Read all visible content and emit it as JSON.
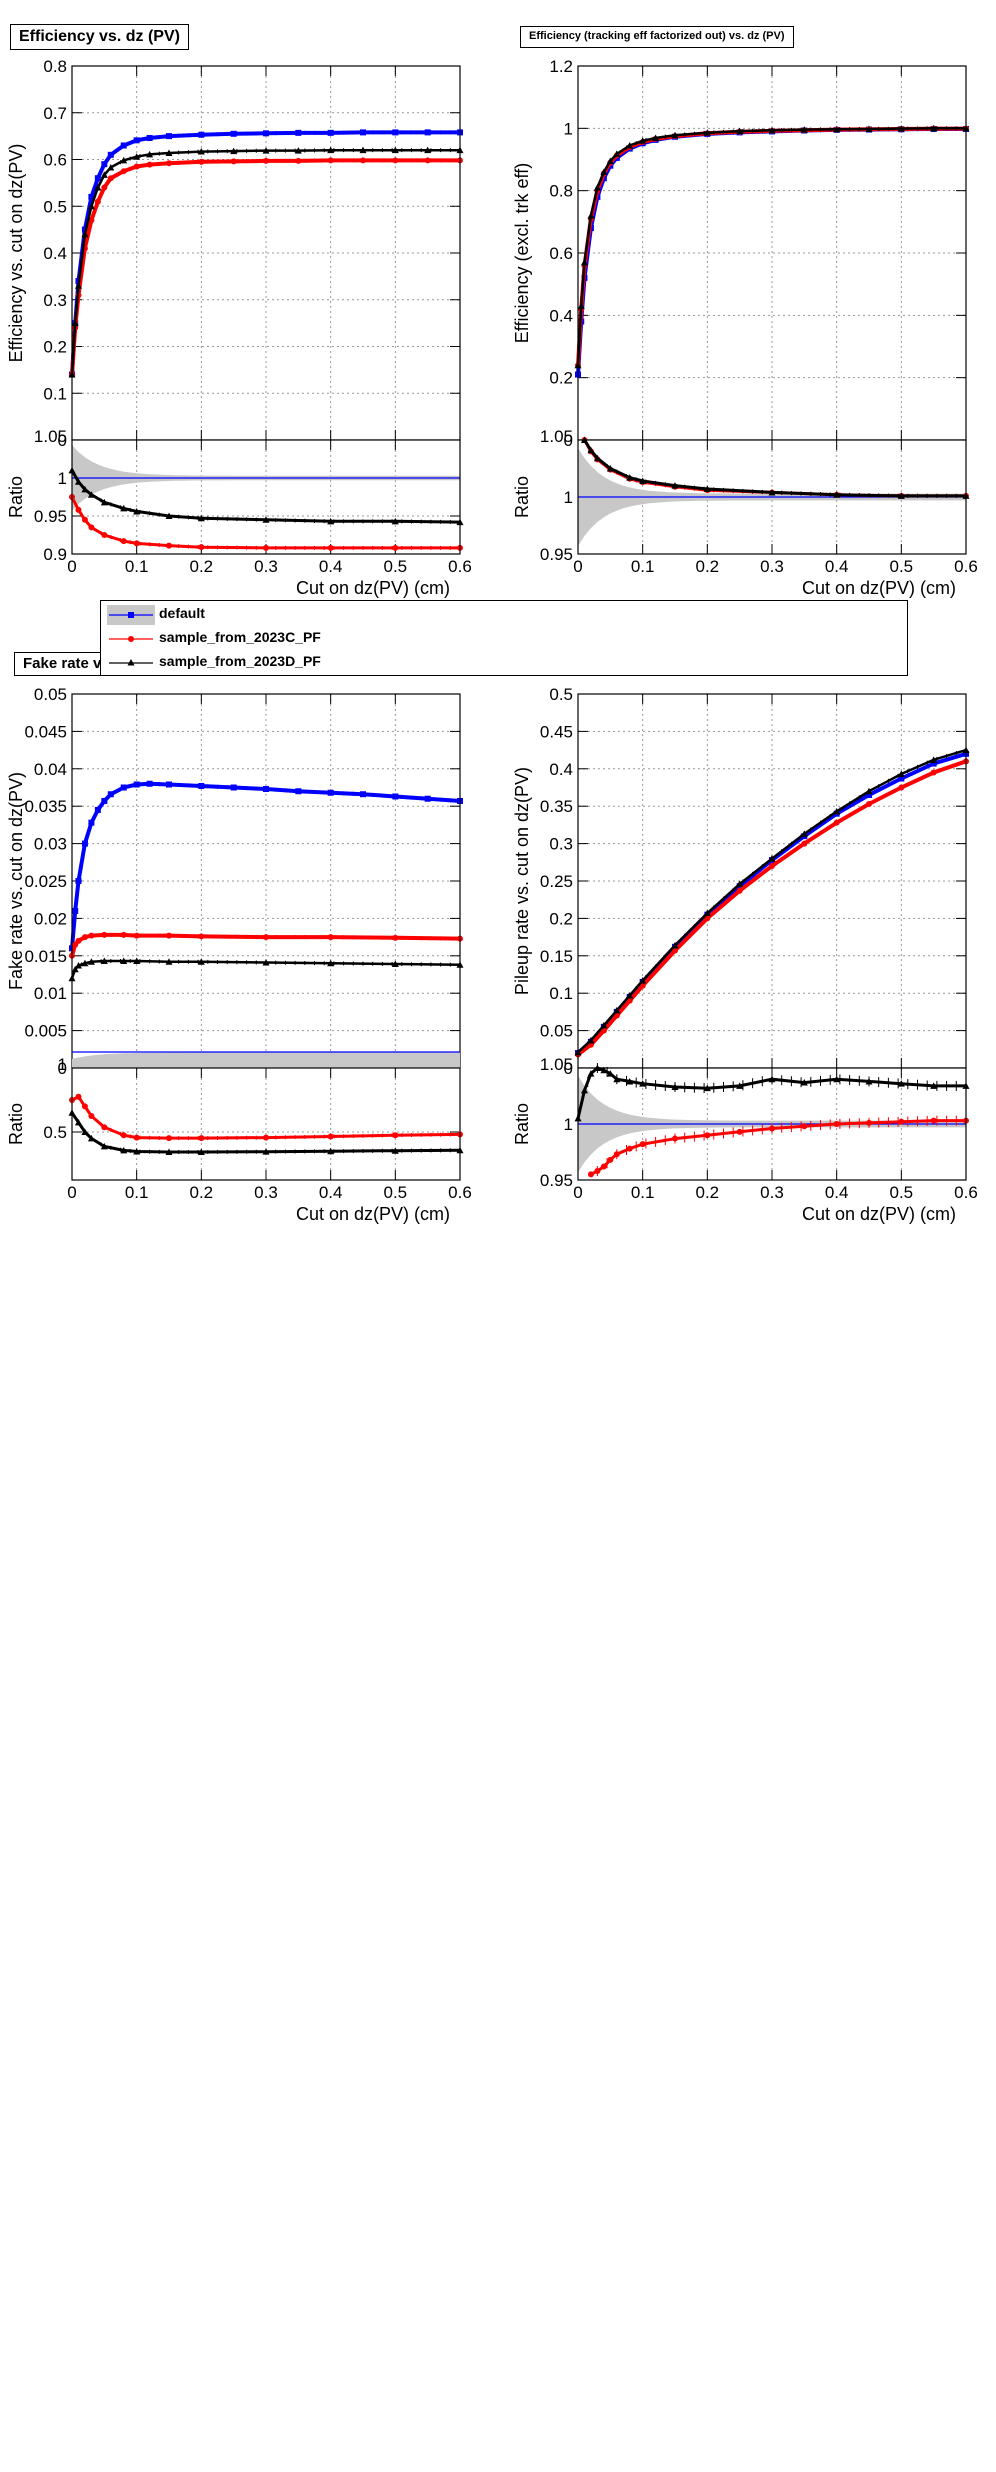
{
  "titles": {
    "eff": "Efficiency vs. dz (PV)",
    "effx": "Efficiency (tracking eff factorized out) vs. dz (PV)",
    "fake": "Fake rate vs. dz (PV)"
  },
  "legend": {
    "entries": [
      {
        "label": "default",
        "color": "#0000ff",
        "marker": "square"
      },
      {
        "label": "sample_from_2023C_PF",
        "color": "#ff0000",
        "marker": "circle"
      },
      {
        "label": "sample_from_2023D_PF",
        "color": "#000000",
        "marker": "triangle"
      }
    ]
  },
  "colors": {
    "default": "#0000ff",
    "2023C": "#ff0000",
    "2023D": "#000000",
    "band": "#c8c8c8",
    "grid": "#999999"
  },
  "chart_data": [
    {
      "id": "eff",
      "type": "scatter",
      "title": "Efficiency vs. dz (PV)",
      "xlabel": "Cut on dz(PV) (cm)",
      "ylabel": "Efficiency vs. cut on dz(PV)",
      "xlim": [
        0,
        0.6
      ],
      "ylim": [
        0,
        0.8
      ],
      "xticks": [
        "0",
        "0.1",
        "0.2",
        "0.3",
        "0.4",
        "0.5",
        "0.6"
      ],
      "yticks": [
        "0",
        "0.1",
        "0.2",
        "0.3",
        "0.4",
        "0.5",
        "0.6",
        "0.7",
        "0.8"
      ],
      "grid": true,
      "series": [
        {
          "name": "default",
          "x": [
            0.0,
            0.005,
            0.01,
            0.02,
            0.03,
            0.04,
            0.05,
            0.06,
            0.08,
            0.1,
            0.12,
            0.15,
            0.2,
            0.25,
            0.3,
            0.35,
            0.4,
            0.45,
            0.5,
            0.55,
            0.6
          ],
          "y": [
            0.14,
            0.25,
            0.34,
            0.45,
            0.52,
            0.56,
            0.59,
            0.61,
            0.63,
            0.641,
            0.646,
            0.65,
            0.653,
            0.655,
            0.656,
            0.657,
            0.657,
            0.658,
            0.658,
            0.658,
            0.658
          ]
        },
        {
          "name": "sample_from_2023C_PF",
          "x": [
            0.0,
            0.005,
            0.01,
            0.02,
            0.03,
            0.04,
            0.05,
            0.06,
            0.08,
            0.1,
            0.12,
            0.15,
            0.2,
            0.25,
            0.3,
            0.35,
            0.4,
            0.45,
            0.5,
            0.55,
            0.6
          ],
          "y": [
            0.14,
            0.24,
            0.31,
            0.41,
            0.47,
            0.51,
            0.54,
            0.56,
            0.575,
            0.585,
            0.589,
            0.592,
            0.595,
            0.596,
            0.597,
            0.597,
            0.598,
            0.598,
            0.598,
            0.598,
            0.598
          ]
        },
        {
          "name": "sample_from_2023D_PF",
          "x": [
            0.0,
            0.005,
            0.01,
            0.02,
            0.03,
            0.04,
            0.05,
            0.06,
            0.08,
            0.1,
            0.12,
            0.15,
            0.2,
            0.25,
            0.3,
            0.35,
            0.4,
            0.45,
            0.5,
            0.55,
            0.6
          ],
          "y": [
            0.14,
            0.25,
            0.33,
            0.44,
            0.5,
            0.54,
            0.567,
            0.583,
            0.598,
            0.606,
            0.611,
            0.614,
            0.617,
            0.618,
            0.619,
            0.619,
            0.62,
            0.62,
            0.62,
            0.62,
            0.62
          ]
        }
      ],
      "ratio": {
        "ylabel": "Ratio",
        "ylim": [
          0.9,
          1.05
        ],
        "yticks": [
          "0.9",
          "0.95",
          "1"
        ],
        "top_tick": "1.05",
        "series": [
          {
            "name": "sample_from_2023C_PF",
            "x": [
              0.0,
              0.01,
              0.02,
              0.03,
              0.05,
              0.08,
              0.1,
              0.15,
              0.2,
              0.3,
              0.4,
              0.5,
              0.6
            ],
            "y": [
              0.975,
              0.958,
              0.945,
              0.935,
              0.925,
              0.917,
              0.914,
              0.911,
              0.909,
              0.908,
              0.908,
              0.908,
              0.908
            ]
          },
          {
            "name": "sample_from_2023D_PF",
            "x": [
              0.0,
              0.01,
              0.02,
              0.03,
              0.05,
              0.08,
              0.1,
              0.15,
              0.2,
              0.3,
              0.4,
              0.5,
              0.6
            ],
            "y": [
              1.01,
              0.995,
              0.985,
              0.978,
              0.968,
              0.96,
              0.956,
              0.95,
              0.947,
              0.945,
              0.943,
              0.943,
              0.942
            ]
          }
        ]
      }
    },
    {
      "id": "effx",
      "type": "scatter",
      "title": "Efficiency (tracking eff factorized out) vs. dz (PV)",
      "xlabel": "Cut on dz(PV) (cm)",
      "ylabel": "Efficiency (excl. trk eff)",
      "xlim": [
        0,
        0.6
      ],
      "ylim": [
        0,
        1.2
      ],
      "xticks": [
        "0",
        "0.1",
        "0.2",
        "0.3",
        "0.4",
        "0.5",
        "0.6"
      ],
      "yticks": [
        "0",
        "0.2",
        "0.4",
        "0.6",
        "0.8",
        "1",
        "1.2"
      ],
      "grid": true,
      "series": [
        {
          "name": "default",
          "x": [
            0.0,
            0.005,
            0.01,
            0.02,
            0.03,
            0.04,
            0.05,
            0.06,
            0.08,
            0.1,
            0.12,
            0.15,
            0.2,
            0.25,
            0.3,
            0.35,
            0.4,
            0.45,
            0.5,
            0.55,
            0.6
          ],
          "y": [
            0.21,
            0.38,
            0.52,
            0.68,
            0.78,
            0.84,
            0.88,
            0.905,
            0.935,
            0.952,
            0.963,
            0.973,
            0.982,
            0.987,
            0.99,
            0.993,
            0.995,
            0.996,
            0.997,
            0.998,
            0.998
          ]
        },
        {
          "name": "sample_from_2023C_PF",
          "x": [
            0.0,
            0.005,
            0.01,
            0.02,
            0.03,
            0.04,
            0.05,
            0.06,
            0.08,
            0.1,
            0.12,
            0.15,
            0.2,
            0.25,
            0.3,
            0.35,
            0.4,
            0.45,
            0.5,
            0.55,
            0.6
          ],
          "y": [
            0.24,
            0.42,
            0.56,
            0.71,
            0.8,
            0.855,
            0.89,
            0.913,
            0.94,
            0.956,
            0.966,
            0.975,
            0.984,
            0.989,
            0.992,
            0.994,
            0.996,
            0.997,
            0.998,
            0.999,
            0.999
          ]
        },
        {
          "name": "sample_from_2023D_PF",
          "x": [
            0.0,
            0.005,
            0.01,
            0.02,
            0.03,
            0.04,
            0.05,
            0.06,
            0.08,
            0.1,
            0.12,
            0.15,
            0.2,
            0.25,
            0.3,
            0.35,
            0.4,
            0.45,
            0.5,
            0.55,
            0.6
          ],
          "y": [
            0.24,
            0.43,
            0.57,
            0.72,
            0.81,
            0.86,
            0.895,
            0.918,
            0.945,
            0.96,
            0.969,
            0.978,
            0.986,
            0.991,
            0.994,
            0.996,
            0.997,
            0.998,
            0.999,
            1.0,
            1.0
          ]
        }
      ],
      "ratio": {
        "ylabel": "Ratio",
        "ylim": [
          0.95,
          1.05
        ],
        "yticks": [
          "0.95",
          "1"
        ],
        "top_tick": "1.05",
        "series": [
          {
            "name": "sample_from_2023C_PF",
            "x": [
              0.01,
              0.02,
              0.03,
              0.05,
              0.08,
              0.1,
              0.15,
              0.2,
              0.3,
              0.4,
              0.5,
              0.6
            ],
            "y": [
              1.05,
              1.04,
              1.033,
              1.024,
              1.016,
              1.013,
              1.009,
              1.006,
              1.004,
              1.002,
              1.001,
              1.001
            ]
          },
          {
            "name": "sample_from_2023D_PF",
            "x": [
              0.01,
              0.02,
              0.03,
              0.05,
              0.08,
              0.1,
              0.15,
              0.2,
              0.3,
              0.4,
              0.5,
              0.6
            ],
            "y": [
              1.05,
              1.041,
              1.034,
              1.025,
              1.017,
              1.014,
              1.01,
              1.007,
              1.004,
              1.002,
              1.001,
              1.001
            ]
          }
        ]
      }
    },
    {
      "id": "fake",
      "type": "scatter",
      "title": "Fake rate vs. dz (PV)",
      "xlabel": "Cut on dz(PV) (cm)",
      "ylabel": "Fake rate vs. cut on dz(PV)",
      "xlim": [
        0,
        0.6
      ],
      "ylim": [
        0,
        0.05
      ],
      "xticks": [
        "0",
        "0.1",
        "0.2",
        "0.3",
        "0.4",
        "0.5",
        "0.6"
      ],
      "yticks": [
        "0",
        "0.005",
        "0.01",
        "0.015",
        "0.02",
        "0.025",
        "0.03",
        "0.035",
        "0.04",
        "0.045",
        "0.05"
      ],
      "grid": true,
      "series": [
        {
          "name": "default",
          "x": [
            0.0,
            0.005,
            0.01,
            0.02,
            0.03,
            0.04,
            0.05,
            0.06,
            0.08,
            0.1,
            0.12,
            0.15,
            0.2,
            0.25,
            0.3,
            0.35,
            0.4,
            0.45,
            0.5,
            0.55,
            0.6
          ],
          "y": [
            0.016,
            0.021,
            0.025,
            0.03,
            0.0328,
            0.0345,
            0.0357,
            0.0366,
            0.0375,
            0.0379,
            0.038,
            0.0379,
            0.0377,
            0.0375,
            0.0373,
            0.037,
            0.0368,
            0.0366,
            0.0363,
            0.036,
            0.0357
          ]
        },
        {
          "name": "sample_from_2023C_PF",
          "x": [
            0.0,
            0.005,
            0.01,
            0.02,
            0.03,
            0.05,
            0.08,
            0.1,
            0.15,
            0.2,
            0.3,
            0.4,
            0.5,
            0.6
          ],
          "y": [
            0.015,
            0.0165,
            0.017,
            0.0175,
            0.0177,
            0.0178,
            0.0178,
            0.0177,
            0.0177,
            0.0176,
            0.0175,
            0.0175,
            0.0174,
            0.0173
          ]
        },
        {
          "name": "sample_from_2023D_PF",
          "x": [
            0.0,
            0.005,
            0.01,
            0.02,
            0.03,
            0.05,
            0.08,
            0.1,
            0.15,
            0.2,
            0.3,
            0.4,
            0.5,
            0.6
          ],
          "y": [
            0.012,
            0.0132,
            0.0137,
            0.014,
            0.0142,
            0.0143,
            0.0143,
            0.0143,
            0.0142,
            0.0142,
            0.0141,
            0.014,
            0.0139,
            0.0138
          ]
        }
      ],
      "ratio": {
        "ylabel": "Ratio",
        "ylim": [
          0.2,
          0.9
        ],
        "yticks": [
          "0.5"
        ],
        "top_tick": "1",
        "series": [
          {
            "name": "sample_from_2023C_PF",
            "x": [
              0.0,
              0.01,
              0.02,
              0.03,
              0.05,
              0.08,
              0.1,
              0.15,
              0.2,
              0.3,
              0.4,
              0.5,
              0.6
            ],
            "y": [
              0.7,
              0.72,
              0.66,
              0.6,
              0.53,
              0.48,
              0.465,
              0.462,
              0.462,
              0.465,
              0.472,
              0.48,
              0.485
            ]
          },
          {
            "name": "sample_from_2023D_PF",
            "x": [
              0.0,
              0.01,
              0.02,
              0.03,
              0.05,
              0.08,
              0.1,
              0.15,
              0.2,
              0.3,
              0.4,
              0.5,
              0.6
            ],
            "y": [
              0.62,
              0.56,
              0.5,
              0.46,
              0.41,
              0.385,
              0.378,
              0.375,
              0.375,
              0.377,
              0.38,
              0.383,
              0.386
            ]
          }
        ]
      }
    },
    {
      "id": "pileup",
      "type": "scatter",
      "title": "",
      "xlabel": "Cut on dz(PV) (cm)",
      "ylabel": "Pileup rate vs. cut on dz(PV)",
      "xlim": [
        0,
        0.6
      ],
      "ylim": [
        0,
        0.5
      ],
      "xticks": [
        "0",
        "0.1",
        "0.2",
        "0.3",
        "0.4",
        "0.5",
        "0.6"
      ],
      "yticks": [
        "0",
        "0.05",
        "0.1",
        "0.15",
        "0.2",
        "0.25",
        "0.3",
        "0.35",
        "0.4",
        "0.45",
        "0.5"
      ],
      "grid": true,
      "series": [
        {
          "name": "default",
          "x": [
            0.0,
            0.02,
            0.04,
            0.06,
            0.08,
            0.1,
            0.15,
            0.2,
            0.25,
            0.3,
            0.35,
            0.4,
            0.45,
            0.5,
            0.55,
            0.6
          ],
          "y": [
            0.02,
            0.035,
            0.055,
            0.075,
            0.095,
            0.115,
            0.162,
            0.205,
            0.243,
            0.278,
            0.31,
            0.34,
            0.365,
            0.387,
            0.407,
            0.42
          ]
        },
        {
          "name": "sample_from_2023C_PF",
          "x": [
            0.0,
            0.02,
            0.04,
            0.06,
            0.08,
            0.1,
            0.15,
            0.2,
            0.25,
            0.3,
            0.35,
            0.4,
            0.45,
            0.5,
            0.55,
            0.6
          ],
          "y": [
            0.018,
            0.031,
            0.05,
            0.07,
            0.09,
            0.11,
            0.157,
            0.2,
            0.237,
            0.27,
            0.3,
            0.328,
            0.353,
            0.375,
            0.395,
            0.41
          ]
        },
        {
          "name": "sample_from_2023D_PF",
          "x": [
            0.0,
            0.02,
            0.04,
            0.06,
            0.08,
            0.1,
            0.15,
            0.2,
            0.25,
            0.3,
            0.35,
            0.4,
            0.45,
            0.5,
            0.55,
            0.6
          ],
          "y": [
            0.021,
            0.037,
            0.057,
            0.077,
            0.097,
            0.117,
            0.164,
            0.207,
            0.246,
            0.28,
            0.313,
            0.343,
            0.37,
            0.393,
            0.412,
            0.425
          ]
        }
      ],
      "ratio": {
        "ylabel": "Ratio",
        "ylim": [
          0.95,
          1.05
        ],
        "yticks": [
          "0.95",
          "1"
        ],
        "top_tick": "1.05",
        "series": [
          {
            "name": "sample_from_2023C_PF",
            "x": [
              0.02,
              0.03,
              0.04,
              0.05,
              0.06,
              0.08,
              0.1,
              0.15,
              0.2,
              0.25,
              0.3,
              0.35,
              0.4,
              0.45,
              0.5,
              0.55,
              0.6
            ],
            "y": [
              0.955,
              0.958,
              0.962,
              0.968,
              0.973,
              0.978,
              0.982,
              0.987,
              0.99,
              0.993,
              0.996,
              0.998,
              1.0,
              1.001,
              1.002,
              1.003,
              1.003
            ]
          },
          {
            "name": "sample_from_2023D_PF",
            "x": [
              0.0,
              0.01,
              0.02,
              0.03,
              0.04,
              0.05,
              0.06,
              0.08,
              0.1,
              0.15,
              0.2,
              0.25,
              0.3,
              0.35,
              0.4,
              0.45,
              0.5,
              0.55,
              0.6
            ],
            "y": [
              1.005,
              1.03,
              1.045,
              1.05,
              1.048,
              1.045,
              1.04,
              1.038,
              1.036,
              1.033,
              1.032,
              1.034,
              1.04,
              1.037,
              1.04,
              1.038,
              1.036,
              1.034,
              1.034
            ]
          }
        ]
      }
    }
  ]
}
